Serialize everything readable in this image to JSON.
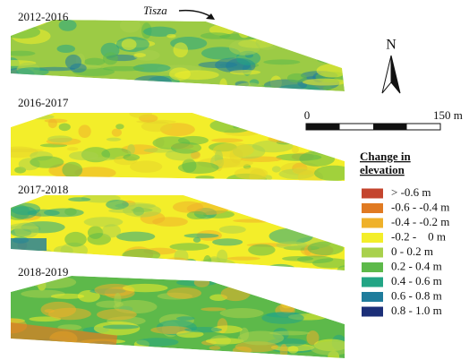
{
  "panels": [
    {
      "label": "2012-2016"
    },
    {
      "label": "2016-2017"
    },
    {
      "label": "2017-2018"
    },
    {
      "label": "2018-2019"
    }
  ],
  "river_label": "Tisza",
  "north_label": "N",
  "scale": {
    "start": "0",
    "end": "150 m"
  },
  "legend": {
    "title": [
      "Change in",
      "elevation"
    ],
    "items": [
      {
        "label": "> -0.6 m",
        "color": "#c4452e"
      },
      {
        "label": "-0.6 - -0.4 m",
        "color": "#e07a22"
      },
      {
        "label": "-0.4 - -0.2 m",
        "color": "#efb12a"
      },
      {
        "label": "-0.2 -    0 m",
        "color": "#f3ee2a"
      },
      {
        "label": "0 - 0.2 m",
        "color": "#a9d14c"
      },
      {
        "label": "0.2 - 0.4 m",
        "color": "#5db94a"
      },
      {
        "label": "0.4 - 0.6 m",
        "color": "#22a585"
      },
      {
        "label": "0.6 - 0.8 m",
        "color": "#1f7c9c"
      },
      {
        "label": "0.8 - 1.0 m",
        "color": "#1c2f78"
      }
    ]
  }
}
